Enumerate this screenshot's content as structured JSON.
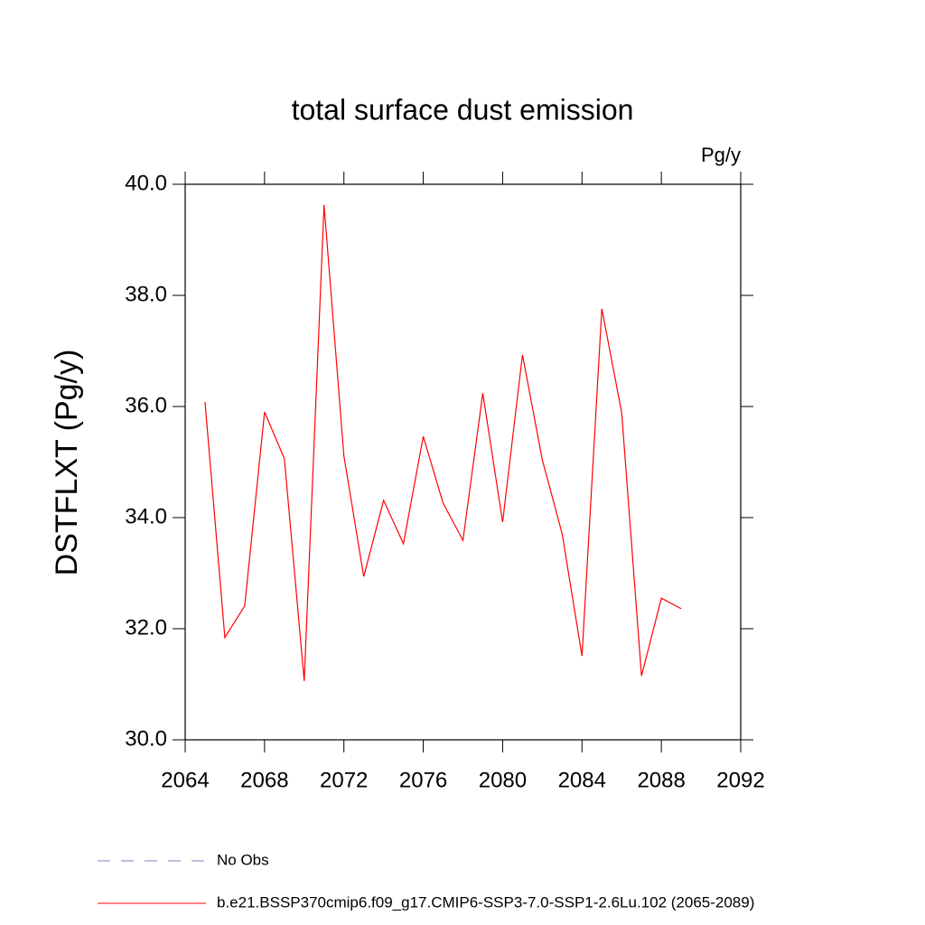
{
  "chart_data": {
    "type": "line",
    "title": "total surface dust emission",
    "units": "Pg/y",
    "y_label": "DSTFLXT  (Pg/y)",
    "x": [
      2065,
      2066,
      2067,
      2068,
      2069,
      2070,
      2071,
      2072,
      2073,
      2074,
      2075,
      2076,
      2077,
      2078,
      2079,
      2080,
      2081,
      2082,
      2083,
      2084,
      2085,
      2086,
      2087,
      2088,
      2089
    ],
    "series": [
      {
        "name": "No Obs",
        "color": "#7f7fbf",
        "dashed": true,
        "values": [
          null,
          null,
          null,
          null,
          null,
          null,
          null,
          null,
          null,
          null,
          null,
          null,
          null,
          null,
          null,
          null,
          null,
          null,
          null,
          null,
          null,
          null,
          null,
          null,
          null
        ]
      },
      {
        "name": "b.e21.BSSP370cmip6.f09_g17.CMIP6-SSP3-7.0-SSP1-2.6Lu.102 (2065-2089)",
        "color": "#ff0000",
        "dashed": false,
        "values": [
          36.08,
          31.84,
          32.41,
          35.9,
          35.06,
          31.06,
          39.63,
          35.11,
          32.94,
          34.31,
          33.53,
          35.46,
          34.26,
          33.59,
          36.24,
          33.92,
          36.93,
          35.04,
          33.71,
          31.51,
          37.76,
          35.89,
          31.15,
          32.55,
          32.36
        ]
      }
    ],
    "xlim": [
      2064,
      2092
    ],
    "xticks": [
      2064,
      2068,
      2072,
      2076,
      2080,
      2084,
      2088,
      2092
    ],
    "ylim": [
      30,
      40
    ],
    "yticks": [
      {
        "value": 30,
        "label": "30.0"
      },
      {
        "value": 32,
        "label": "32.0"
      },
      {
        "value": 34,
        "label": "34.0"
      },
      {
        "value": 36,
        "label": "36.0"
      },
      {
        "value": 38,
        "label": "38.0"
      },
      {
        "value": 40,
        "label": "40.0"
      }
    ],
    "grid": false
  }
}
